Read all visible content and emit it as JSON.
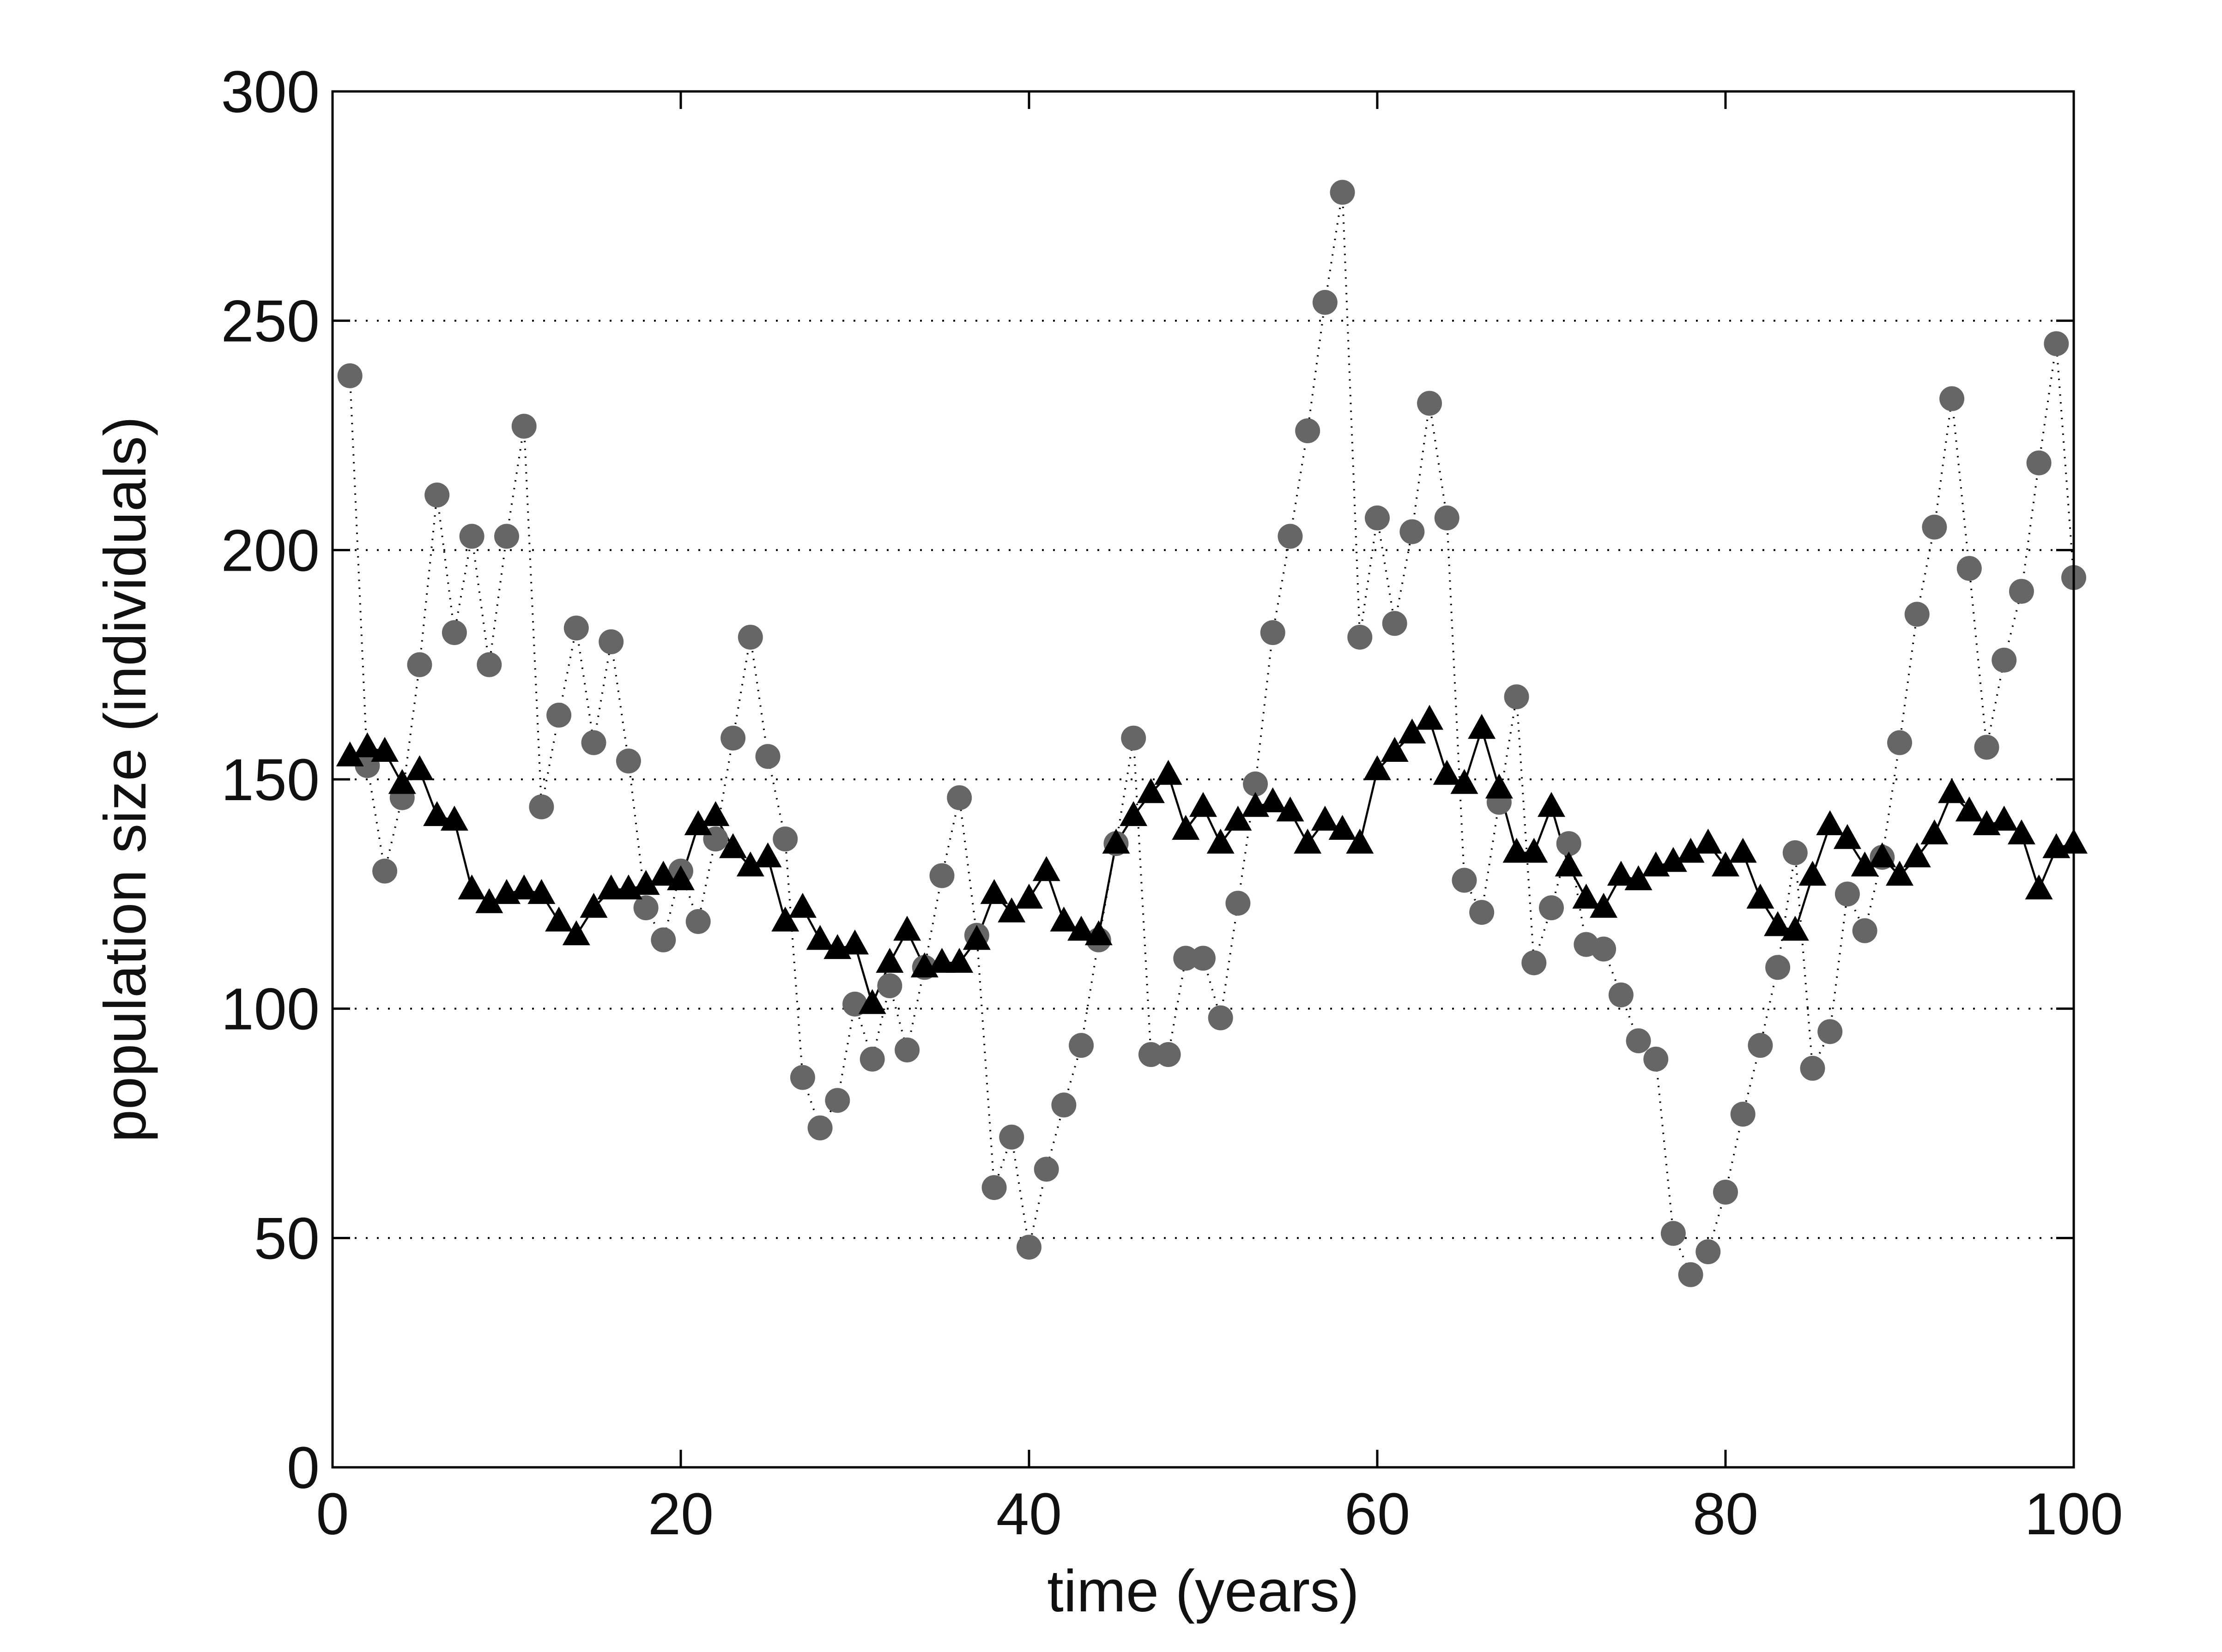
{
  "chart_data": {
    "type": "scatter",
    "title": "",
    "xlabel": "time (years)",
    "ylabel": "population size (individuals)",
    "xlim": [
      0,
      100
    ],
    "ylim": [
      0,
      300
    ],
    "xticks": [
      "0",
      "20",
      "40",
      "60",
      "80",
      "100"
    ],
    "yticks": [
      "0",
      "50",
      "100",
      "150",
      "200",
      "250",
      "300"
    ],
    "grid": "horizontal dotted",
    "legend": "none",
    "x": [
      1,
      2,
      3,
      4,
      5,
      6,
      7,
      8,
      9,
      10,
      11,
      12,
      13,
      14,
      15,
      16,
      17,
      18,
      19,
      20,
      21,
      22,
      23,
      24,
      25,
      26,
      27,
      28,
      29,
      30,
      31,
      32,
      33,
      34,
      35,
      36,
      37,
      38,
      39,
      40,
      41,
      42,
      43,
      44,
      45,
      46,
      47,
      48,
      49,
      50,
      51,
      52,
      53,
      54,
      55,
      56,
      57,
      58,
      59,
      60,
      61,
      62,
      63,
      64,
      65,
      66,
      67,
      68,
      69,
      70,
      71,
      72,
      73,
      74,
      75,
      76,
      77,
      78,
      79,
      80,
      81,
      82,
      83,
      84,
      85,
      86,
      87,
      88,
      89,
      90,
      91,
      92,
      93,
      94,
      95,
      96,
      97,
      98,
      99,
      100
    ],
    "series": [
      {
        "marker": "circle",
        "line": "dotted",
        "color": "#666666",
        "values": [
          238,
          153,
          130,
          146,
          175,
          212,
          182,
          203,
          175,
          203,
          227,
          144,
          164,
          183,
          158,
          180,
          154,
          122,
          115,
          130,
          119,
          137,
          159,
          181,
          155,
          137,
          85,
          74,
          80,
          101,
          89,
          105,
          91,
          109,
          129,
          146,
          116,
          61,
          72,
          48,
          65,
          79,
          92,
          115,
          136,
          159,
          90,
          90,
          111,
          111,
          98,
          123,
          149,
          182,
          203,
          226,
          254,
          278,
          181,
          207,
          184,
          204,
          232,
          207,
          128,
          121,
          145,
          168,
          110,
          122,
          136,
          114,
          113,
          103,
          93,
          89,
          51,
          42,
          47,
          60,
          77,
          92,
          109,
          134,
          87,
          95,
          125,
          117,
          133,
          158,
          186,
          205,
          233,
          196,
          157,
          176,
          191,
          219,
          245,
          194
        ]
      },
      {
        "marker": "triangle",
        "line": "solid",
        "color": "#000000",
        "values": [
          155,
          157,
          156,
          149,
          152,
          142,
          141,
          126,
          123,
          125,
          126,
          125,
          119,
          116,
          122,
          126,
          126,
          127,
          129,
          128,
          140,
          142,
          135,
          131,
          133,
          119,
          122,
          115,
          113,
          114,
          101,
          110,
          117,
          109,
          110,
          110,
          115,
          125,
          121,
          124,
          130,
          119,
          117,
          116,
          136,
          142,
          147,
          151,
          139,
          144,
          136,
          141,
          144,
          145,
          143,
          136,
          141,
          139,
          136,
          152,
          156,
          160,
          163,
          151,
          149,
          161,
          148,
          134,
          134,
          144,
          131,
          124,
          122,
          129,
          128,
          131,
          132,
          134,
          136,
          131,
          134,
          124,
          118,
          117,
          129,
          140,
          137,
          131,
          133,
          129,
          133,
          138,
          147,
          143,
          140,
          141,
          138,
          126,
          135,
          136
        ]
      }
    ]
  }
}
